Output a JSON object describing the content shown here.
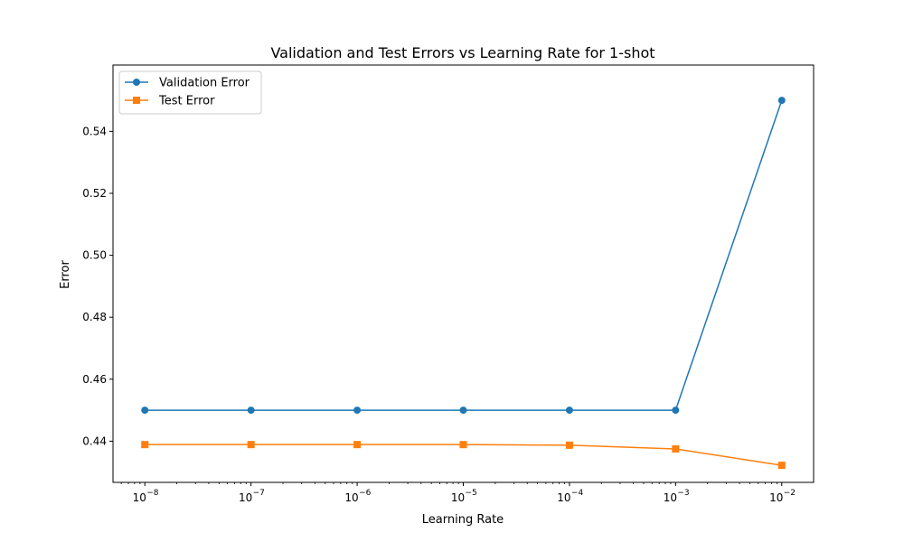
{
  "chart_data": {
    "type": "line",
    "title": "Validation and Test Errors vs Learning Rate for 1-shot",
    "xlabel": "Learning Rate",
    "ylabel": "Error",
    "x_scale": "log",
    "x": [
      1e-08,
      1e-07,
      1e-06,
      1e-05,
      0.0001,
      0.001,
      0.01
    ],
    "x_tick_labels": [
      {
        "base": "10",
        "exp": "−8"
      },
      {
        "base": "10",
        "exp": "−7"
      },
      {
        "base": "10",
        "exp": "−6"
      },
      {
        "base": "10",
        "exp": "−5"
      },
      {
        "base": "10",
        "exp": "−4"
      },
      {
        "base": "10",
        "exp": "−3"
      },
      {
        "base": "10",
        "exp": "−2"
      }
    ],
    "y_ticks": [
      0.44,
      0.46,
      0.48,
      0.5,
      0.52,
      0.54
    ],
    "y_tick_labels": [
      "0.44",
      "0.46",
      "0.48",
      "0.50",
      "0.52",
      "0.54"
    ],
    "ylim": [
      0.4267,
      0.5614
    ],
    "grid": false,
    "legend_position": "top-left",
    "series": [
      {
        "name": "Validation Error",
        "marker": "circle",
        "color": "#1f77b4",
        "values": [
          0.45,
          0.45,
          0.45,
          0.45,
          0.45,
          0.45,
          0.55
        ]
      },
      {
        "name": "Test Error",
        "marker": "square",
        "color": "#ff7f0e",
        "values": [
          0.4389,
          0.4389,
          0.4389,
          0.4389,
          0.4387,
          0.4375,
          0.4322
        ]
      }
    ]
  }
}
